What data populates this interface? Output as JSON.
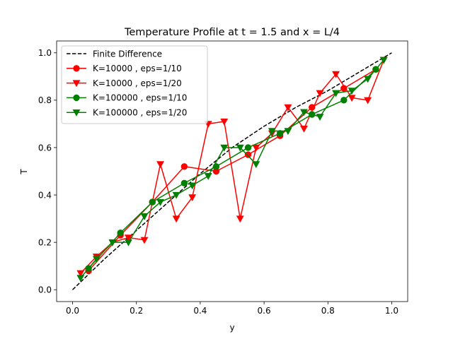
{
  "chart_data": {
    "type": "line",
    "title": "Temperature Profile at t = 1.5 and x = L/4",
    "xlabel": "y",
    "ylabel": "T",
    "xlim": [
      -0.05,
      1.05
    ],
    "ylim": [
      -0.05,
      1.05
    ],
    "xticks": [
      "0.0",
      "0.2",
      "0.4",
      "0.6",
      "0.8",
      "1.0"
    ],
    "yticks": [
      "0.0",
      "0.2",
      "0.4",
      "0.6",
      "0.8",
      "1.0"
    ],
    "grid": false,
    "legend_position": "upper-left",
    "series": [
      {
        "name": "Finite Difference",
        "color": "#000000",
        "dash": true,
        "marker": "none",
        "x": [
          0.0,
          0.1,
          0.2,
          0.3,
          0.4,
          0.5,
          0.6,
          0.7,
          0.8,
          0.9,
          1.0
        ],
        "y": [
          0.0,
          0.13,
          0.25,
          0.37,
          0.49,
          0.6,
          0.69,
          0.77,
          0.84,
          0.92,
          1.0
        ]
      },
      {
        "name": "K=10000 , eps=1/10",
        "color": "#ff0000",
        "marker": "circle",
        "x": [
          0.05,
          0.15,
          0.25,
          0.35,
          0.45,
          0.55,
          0.65,
          0.75,
          0.85,
          0.95
        ],
        "y": [
          0.08,
          0.23,
          0.37,
          0.52,
          0.5,
          0.57,
          0.65,
          0.77,
          0.85,
          0.93
        ]
      },
      {
        "name": "K=10000 , eps=1/20",
        "color": "#ff0000",
        "marker": "triangle-down",
        "x": [
          0.025,
          0.075,
          0.125,
          0.175,
          0.225,
          0.275,
          0.325,
          0.375,
          0.425,
          0.475,
          0.525,
          0.575,
          0.625,
          0.675,
          0.725,
          0.775,
          0.825,
          0.875,
          0.925,
          0.975
        ],
        "y": [
          0.07,
          0.14,
          0.2,
          0.22,
          0.21,
          0.53,
          0.3,
          0.39,
          0.7,
          0.71,
          0.3,
          0.6,
          0.66,
          0.77,
          0.68,
          0.83,
          0.91,
          0.81,
          0.8,
          0.97
        ]
      },
      {
        "name": "K=100000 , eps=1/10",
        "color": "#008000",
        "marker": "circle",
        "x": [
          0.05,
          0.15,
          0.25,
          0.35,
          0.45,
          0.55,
          0.65,
          0.75,
          0.85,
          0.95
        ],
        "y": [
          0.09,
          0.24,
          0.37,
          0.45,
          0.52,
          0.6,
          0.66,
          0.74,
          0.8,
          0.93
        ]
      },
      {
        "name": "K=100000 , eps=1/20",
        "color": "#008000",
        "marker": "triangle-down",
        "x": [
          0.025,
          0.075,
          0.125,
          0.175,
          0.225,
          0.275,
          0.325,
          0.375,
          0.425,
          0.475,
          0.525,
          0.575,
          0.625,
          0.675,
          0.725,
          0.775,
          0.825,
          0.875,
          0.925,
          0.975
        ],
        "y": [
          0.05,
          0.13,
          0.2,
          0.2,
          0.31,
          0.37,
          0.4,
          0.44,
          0.48,
          0.6,
          0.6,
          0.53,
          0.67,
          0.67,
          0.75,
          0.73,
          0.83,
          0.84,
          0.89,
          0.97
        ]
      }
    ]
  }
}
